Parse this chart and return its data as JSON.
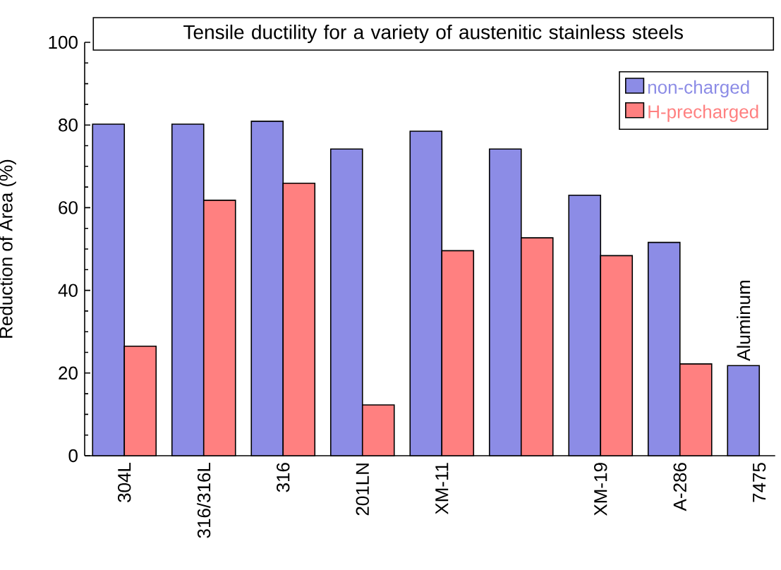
{
  "chart_data": {
    "type": "bar",
    "title": "Tensile ductility for a variety of austenitic stainless steels",
    "ylabel": "Reduction of Area (%)",
    "categories": [
      "304L",
      "316/316L",
      "316",
      "201LN",
      "XM-11",
      null,
      "XM-19",
      "A-286",
      "7475"
    ],
    "series": [
      {
        "name": "non-charged",
        "color": "#8c8ce6",
        "values": [
          80.2,
          80.2,
          80.9,
          74.2,
          78.5,
          74.2,
          63.0,
          51.6,
          21.8
        ]
      },
      {
        "name": "H-precharged",
        "color": "#ff8080",
        "values": [
          26.5,
          61.8,
          65.9,
          12.3,
          49.6,
          52.7,
          48.4,
          22.2,
          null
        ]
      }
    ],
    "ylim": [
      0,
      100
    ],
    "yticks": [
      0,
      20,
      40,
      60,
      80,
      100
    ],
    "legend": "top right",
    "annotations": [
      {
        "text": "Aluminum",
        "x": "7475",
        "y": 21.8
      }
    ]
  }
}
